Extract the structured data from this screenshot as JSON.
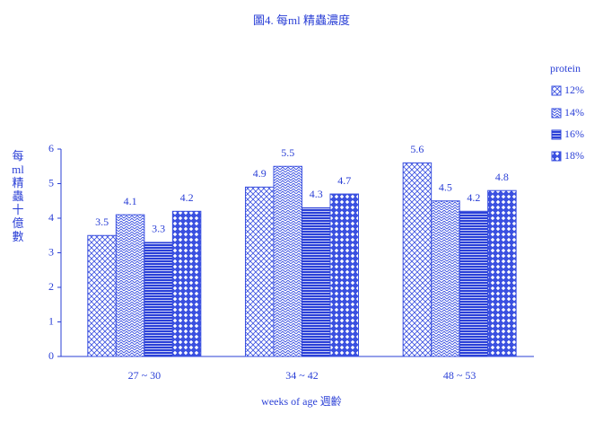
{
  "chart_data": {
    "type": "bar",
    "title": "圖4. 每ml 精蟲濃度",
    "ylabel": [
      "每",
      "ml",
      "精",
      "蟲",
      "十",
      "億",
      "數"
    ],
    "xlabel": "weeks  of  age  週齡",
    "categories": [
      "27 ~ 30",
      "34 ~ 42",
      "48 ~ 53"
    ],
    "legend_title": "protein",
    "series": [
      {
        "name": "12%",
        "color": "#3a50e0",
        "values": [
          3.5,
          4.9,
          5.6
        ]
      },
      {
        "name": "14%",
        "color": "#3a50e0",
        "values": [
          4.1,
          5.5,
          4.5
        ]
      },
      {
        "name": "16%",
        "color": "#2a40d8",
        "values": [
          3.3,
          4.3,
          4.2
        ]
      },
      {
        "name": "18%",
        "color": "#3a50e0",
        "values": [
          4.2,
          4.7,
          4.8
        ]
      }
    ],
    "ylim": [
      0,
      6
    ],
    "yticks": [
      0,
      1,
      2,
      3,
      4,
      5,
      6
    ]
  }
}
